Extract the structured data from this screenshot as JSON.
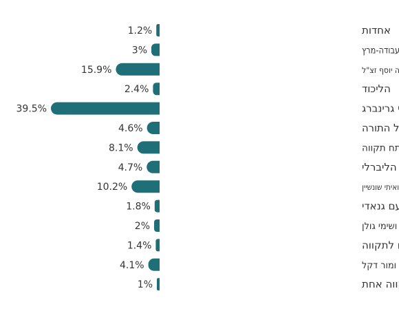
{
  "chart_data": {
    "type": "bar",
    "orientation": "horizontal",
    "value_suffix": "%",
    "bar_color": "#1f6f78",
    "xlim": [
      0,
      40
    ],
    "grid": false,
    "categories": [
      "אחדות",
      "אמת המחנה הדמוקרטי בהנהגת סרחיו גולדמן העבודה-מרץ",
      "בראשות הרב אליהו גינת מיסודו של מרן הרב עובדיה יוסף זצ\"ל",
      "הליכוד",
      "התחדשות בראשות רמי גרינברג",
      "יהדות התורה והשבת אגודת ישראל דגל התורה",
      "יחדיו הציונות הדתית - הבית היהודי בפתח תקווה",
      "יש עתיד המחנה הליברלי",
      "מחוייבים חווה חדש הכוח הליברלי בראשות אורי אהד ואיתי שונשיין",
      "מצטיינים עם גנאדי",
      "עוצמה לפתח תקווה בראשות גילה בן נאים ושימי גולן",
      "פתח לתקווה",
      "פתח תקווה ביתנו בראשות מארק קניזיבסקי ומור דקל",
      "תקווה אחת"
    ],
    "values": [
      1.2,
      3,
      15.9,
      2.4,
      39.5,
      4.6,
      8.1,
      4.7,
      10.2,
      1.8,
      2,
      1.4,
      4.1,
      1
    ],
    "value_labels": [
      "1.2%",
      "3%",
      "15.9%",
      "2.4%",
      "39.5%",
      "4.6%",
      "8.1%",
      "4.7%",
      "10.2%",
      "1.8%",
      "2%",
      "1.4%",
      "4.1%",
      "1%"
    ]
  }
}
